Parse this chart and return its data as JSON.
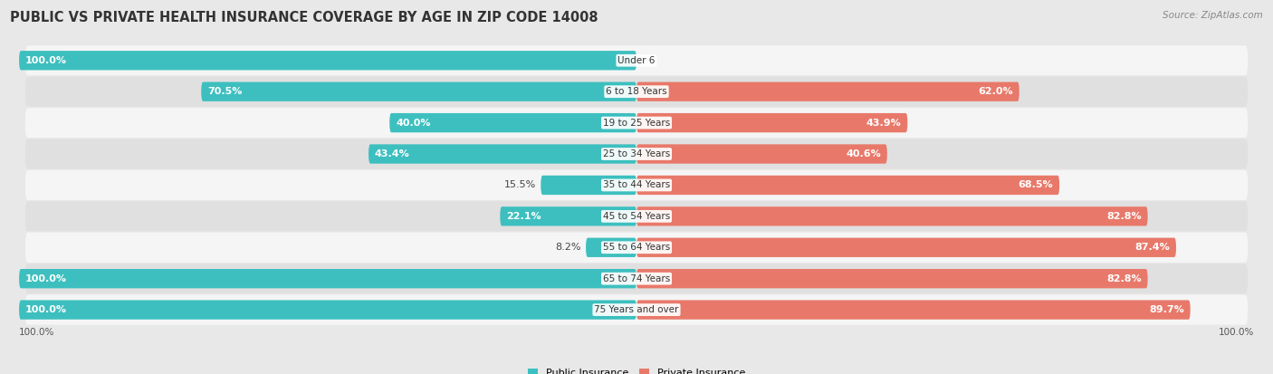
{
  "title": "PUBLIC VS PRIVATE HEALTH INSURANCE COVERAGE BY AGE IN ZIP CODE 14008",
  "source": "Source: ZipAtlas.com",
  "categories": [
    "Under 6",
    "6 to 18 Years",
    "19 to 25 Years",
    "25 to 34 Years",
    "35 to 44 Years",
    "45 to 54 Years",
    "55 to 64 Years",
    "65 to 74 Years",
    "75 Years and over"
  ],
  "public_values": [
    100.0,
    70.5,
    40.0,
    43.4,
    15.5,
    22.1,
    8.2,
    100.0,
    100.0
  ],
  "private_values": [
    0.0,
    62.0,
    43.9,
    40.6,
    68.5,
    82.8,
    87.4,
    82.8,
    89.7
  ],
  "public_color": "#3DBFBF",
  "private_color": "#E8796A",
  "bg_color": "#e8e8e8",
  "row_bg_even": "#f5f5f5",
  "row_bg_odd": "#e0e0e0",
  "max_value": 100.0,
  "bar_height": 0.62,
  "title_fontsize": 10.5,
  "label_fontsize": 8.0,
  "tick_fontsize": 7.5,
  "source_fontsize": 7.5
}
